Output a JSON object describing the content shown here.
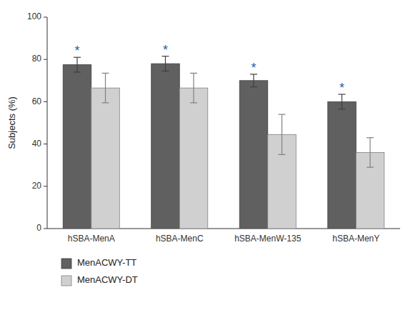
{
  "chart_data": {
    "type": "bar",
    "y_label": "Subjects (%)",
    "categories": [
      "hSBA-MenA",
      "hSBA-MenC",
      "hSBA-MenW-135",
      "hSBA-MenY"
    ],
    "series": [
      {
        "name": "MenACWY-TT",
        "color": "#606060",
        "values": [
          77.5,
          78.0,
          70.0,
          60.0
        ],
        "errors": [
          3.5,
          3.5,
          3.0,
          3.5
        ]
      },
      {
        "name": "MenACWY-DT",
        "color": "#d0d0d0",
        "values": [
          66.5,
          66.5,
          44.5,
          36.0
        ],
        "errors": [
          7.0,
          7.0,
          9.5,
          7.0
        ]
      }
    ],
    "annotations": [
      {
        "text": "*",
        "series": "MenACWY-TT",
        "category": "hSBA-MenA"
      },
      {
        "text": "*",
        "series": "MenACWY-TT",
        "category": "hSBA-MenC"
      },
      {
        "text": "*",
        "series": "MenACWY-TT",
        "category": "hSBA-MenW-135"
      },
      {
        "text": "*",
        "series": "MenACWY-TT",
        "category": "hSBA-MenY"
      }
    ],
    "ylim": [
      0,
      100
    ],
    "yticks": [
      0,
      20,
      40,
      60,
      80,
      100
    ],
    "grid": false,
    "legend": "bottom"
  }
}
